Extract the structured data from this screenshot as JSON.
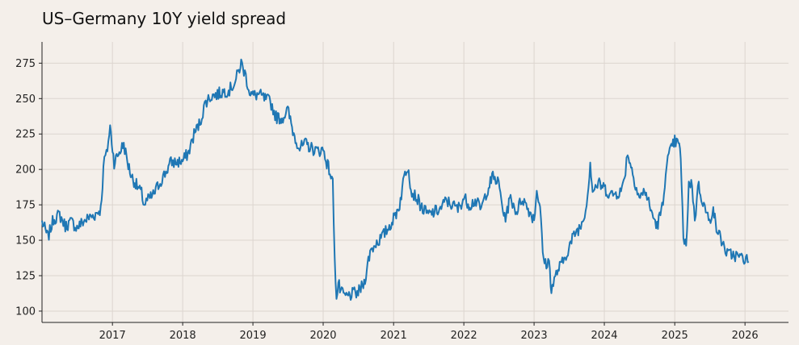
{
  "chart_data": {
    "type": "line",
    "title": "US–Germany 10Y yield spread",
    "xlabel": "",
    "ylabel": "",
    "xlim": [
      "2016-01-01",
      "2026-08-15"
    ],
    "ylim": [
      92,
      290
    ],
    "yticks": [
      100,
      125,
      150,
      175,
      200,
      225,
      250,
      275
    ],
    "xticks": [
      "2017",
      "2018",
      "2019",
      "2020",
      "2021",
      "2022",
      "2023",
      "2024",
      "2025",
      "2026"
    ],
    "grid": true,
    "legend": "none",
    "colors": {
      "line": "#1f77b4",
      "background": "#f4efea",
      "grid": "#dcd5cf"
    },
    "series": [
      {
        "name": "",
        "x": [
          "2016-01-01",
          "2016-02-01",
          "2016-03-01",
          "2016-04-01",
          "2016-05-01",
          "2016-06-01",
          "2016-07-01",
          "2016-08-01",
          "2016-09-01",
          "2016-10-01",
          "2016-11-01",
          "2016-11-20",
          "2016-12-01",
          "2016-12-20",
          "2017-01-10",
          "2017-02-01",
          "2017-03-01",
          "2017-03-20",
          "2017-04-10",
          "2017-05-01",
          "2017-06-01",
          "2017-06-15",
          "2017-07-01",
          "2017-08-01",
          "2017-09-01",
          "2017-10-01",
          "2017-11-01",
          "2017-12-01",
          "2018-01-01",
          "2018-02-01",
          "2018-03-01",
          "2018-04-01",
          "2018-05-01",
          "2018-06-01",
          "2018-07-01",
          "2018-08-01",
          "2018-09-01",
          "2018-10-01",
          "2018-11-01",
          "2018-11-20",
          "2018-12-15",
          "2019-01-01",
          "2019-02-01",
          "2019-03-01",
          "2019-04-01",
          "2019-05-01",
          "2019-06-01",
          "2019-07-01",
          "2019-08-01",
          "2019-09-01",
          "2019-10-01",
          "2019-11-01",
          "2019-12-01",
          "2020-01-01",
          "2020-01-20",
          "2020-02-01",
          "2020-02-20",
          "2020-03-01",
          "2020-03-10",
          "2020-03-20",
          "2020-04-01",
          "2020-05-01",
          "2020-06-01",
          "2020-07-01",
          "2020-08-01",
          "2020-09-01",
          "2020-10-01",
          "2020-11-01",
          "2020-12-01",
          "2021-01-01",
          "2021-02-01",
          "2021-03-01",
          "2021-03-20",
          "2021-04-01",
          "2021-05-01",
          "2021-06-01",
          "2021-07-01",
          "2021-08-01",
          "2021-09-01",
          "2021-10-01",
          "2021-11-01",
          "2021-12-01",
          "2022-01-01",
          "2022-02-01",
          "2022-03-01",
          "2022-04-01",
          "2022-05-01",
          "2022-06-01",
          "2022-07-01",
          "2022-08-01",
          "2022-09-01",
          "2022-10-01",
          "2022-11-01",
          "2022-12-01",
          "2023-01-01",
          "2023-01-15",
          "2023-02-01",
          "2023-02-15",
          "2023-03-01",
          "2023-03-20",
          "2023-04-01",
          "2023-05-01",
          "2023-06-01",
          "2023-07-01",
          "2023-08-01",
          "2023-09-01",
          "2023-10-01",
          "2023-10-20",
          "2023-11-01",
          "2023-12-01",
          "2024-01-01",
          "2024-02-01",
          "2024-03-01",
          "2024-04-01",
          "2024-04-20",
          "2024-05-01",
          "2024-06-01",
          "2024-07-01",
          "2024-08-01",
          "2024-09-01",
          "2024-10-01",
          "2024-11-01",
          "2024-11-15",
          "2024-12-01",
          "2025-01-01",
          "2025-01-20",
          "2025-02-01",
          "2025-02-15",
          "2025-03-01",
          "2025-03-15",
          "2025-04-01",
          "2025-04-15",
          "2025-05-01",
          "2025-06-01",
          "2025-07-01",
          "2025-07-20",
          "2025-08-01",
          "2025-09-01",
          "2025-10-01",
          "2025-11-01",
          "2025-12-01",
          "2026-01-01",
          "2026-01-20"
        ],
        "y": [
          163,
          152,
          165,
          168,
          160,
          163,
          159,
          163,
          166,
          168,
          172,
          208,
          210,
          230,
          205,
          211,
          218,
          205,
          195,
          190,
          183,
          175,
          178,
          182,
          190,
          197,
          205,
          205,
          206,
          212,
          225,
          233,
          248,
          252,
          253,
          255,
          256,
          262,
          275,
          268,
          255,
          252,
          253,
          250,
          248,
          237,
          236,
          242,
          225,
          215,
          218,
          215,
          213,
          214,
          205,
          200,
          190,
          140,
          107,
          120,
          113,
          110,
          112,
          113,
          120,
          142,
          148,
          152,
          158,
          165,
          175,
          198,
          203,
          185,
          180,
          172,
          168,
          170,
          172,
          178,
          175,
          172,
          180,
          175,
          178,
          172,
          185,
          195,
          190,
          165,
          180,
          170,
          180,
          172,
          165,
          185,
          175,
          140,
          133,
          135,
          115,
          128,
          135,
          145,
          155,
          160,
          175,
          205,
          185,
          190,
          187,
          182,
          183,
          185,
          200,
          212,
          195,
          180,
          185,
          170,
          160,
          175,
          200,
          210,
          220,
          218,
          210,
          150,
          145,
          190,
          190,
          162,
          190,
          175,
          162,
          175,
          160,
          150,
          140,
          140,
          138,
          137,
          135
        ]
      }
    ]
  }
}
